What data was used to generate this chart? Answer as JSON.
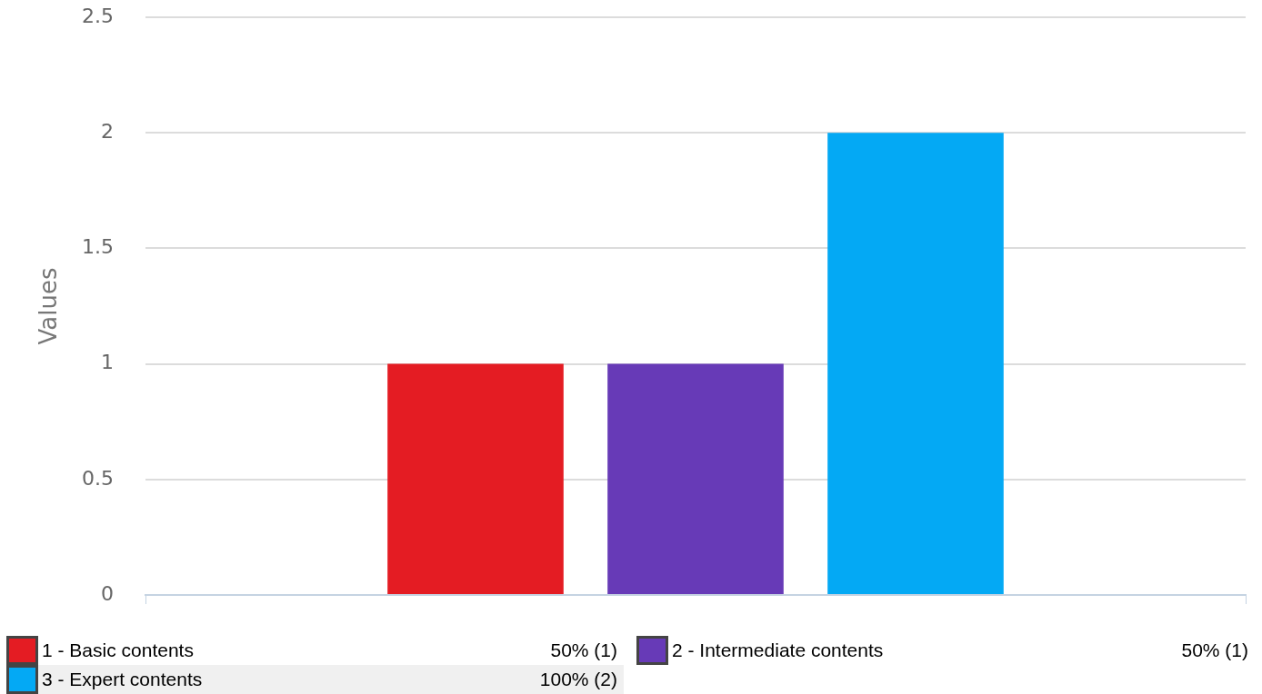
{
  "chart_data": {
    "type": "bar",
    "categories": [
      null
    ],
    "ylabel": "Values",
    "ylim": [
      0,
      2.5
    ],
    "yticks": [
      0,
      0.5,
      1,
      1.5,
      2,
      2.5
    ],
    "grid": "y",
    "legend": "bottom",
    "annotations": [
      "50% (1)",
      "50% (1)",
      "100% (2)"
    ],
    "series": [
      {
        "name": "1 - Basic contents",
        "color": "#e41c23",
        "values": [
          1
        ]
      },
      {
        "name": "2 - Intermediate contents",
        "color": "#673ab7",
        "values": [
          1
        ]
      },
      {
        "name": "3 - Expert contents",
        "color": "#04a9f4",
        "values": [
          2
        ]
      }
    ]
  }
}
